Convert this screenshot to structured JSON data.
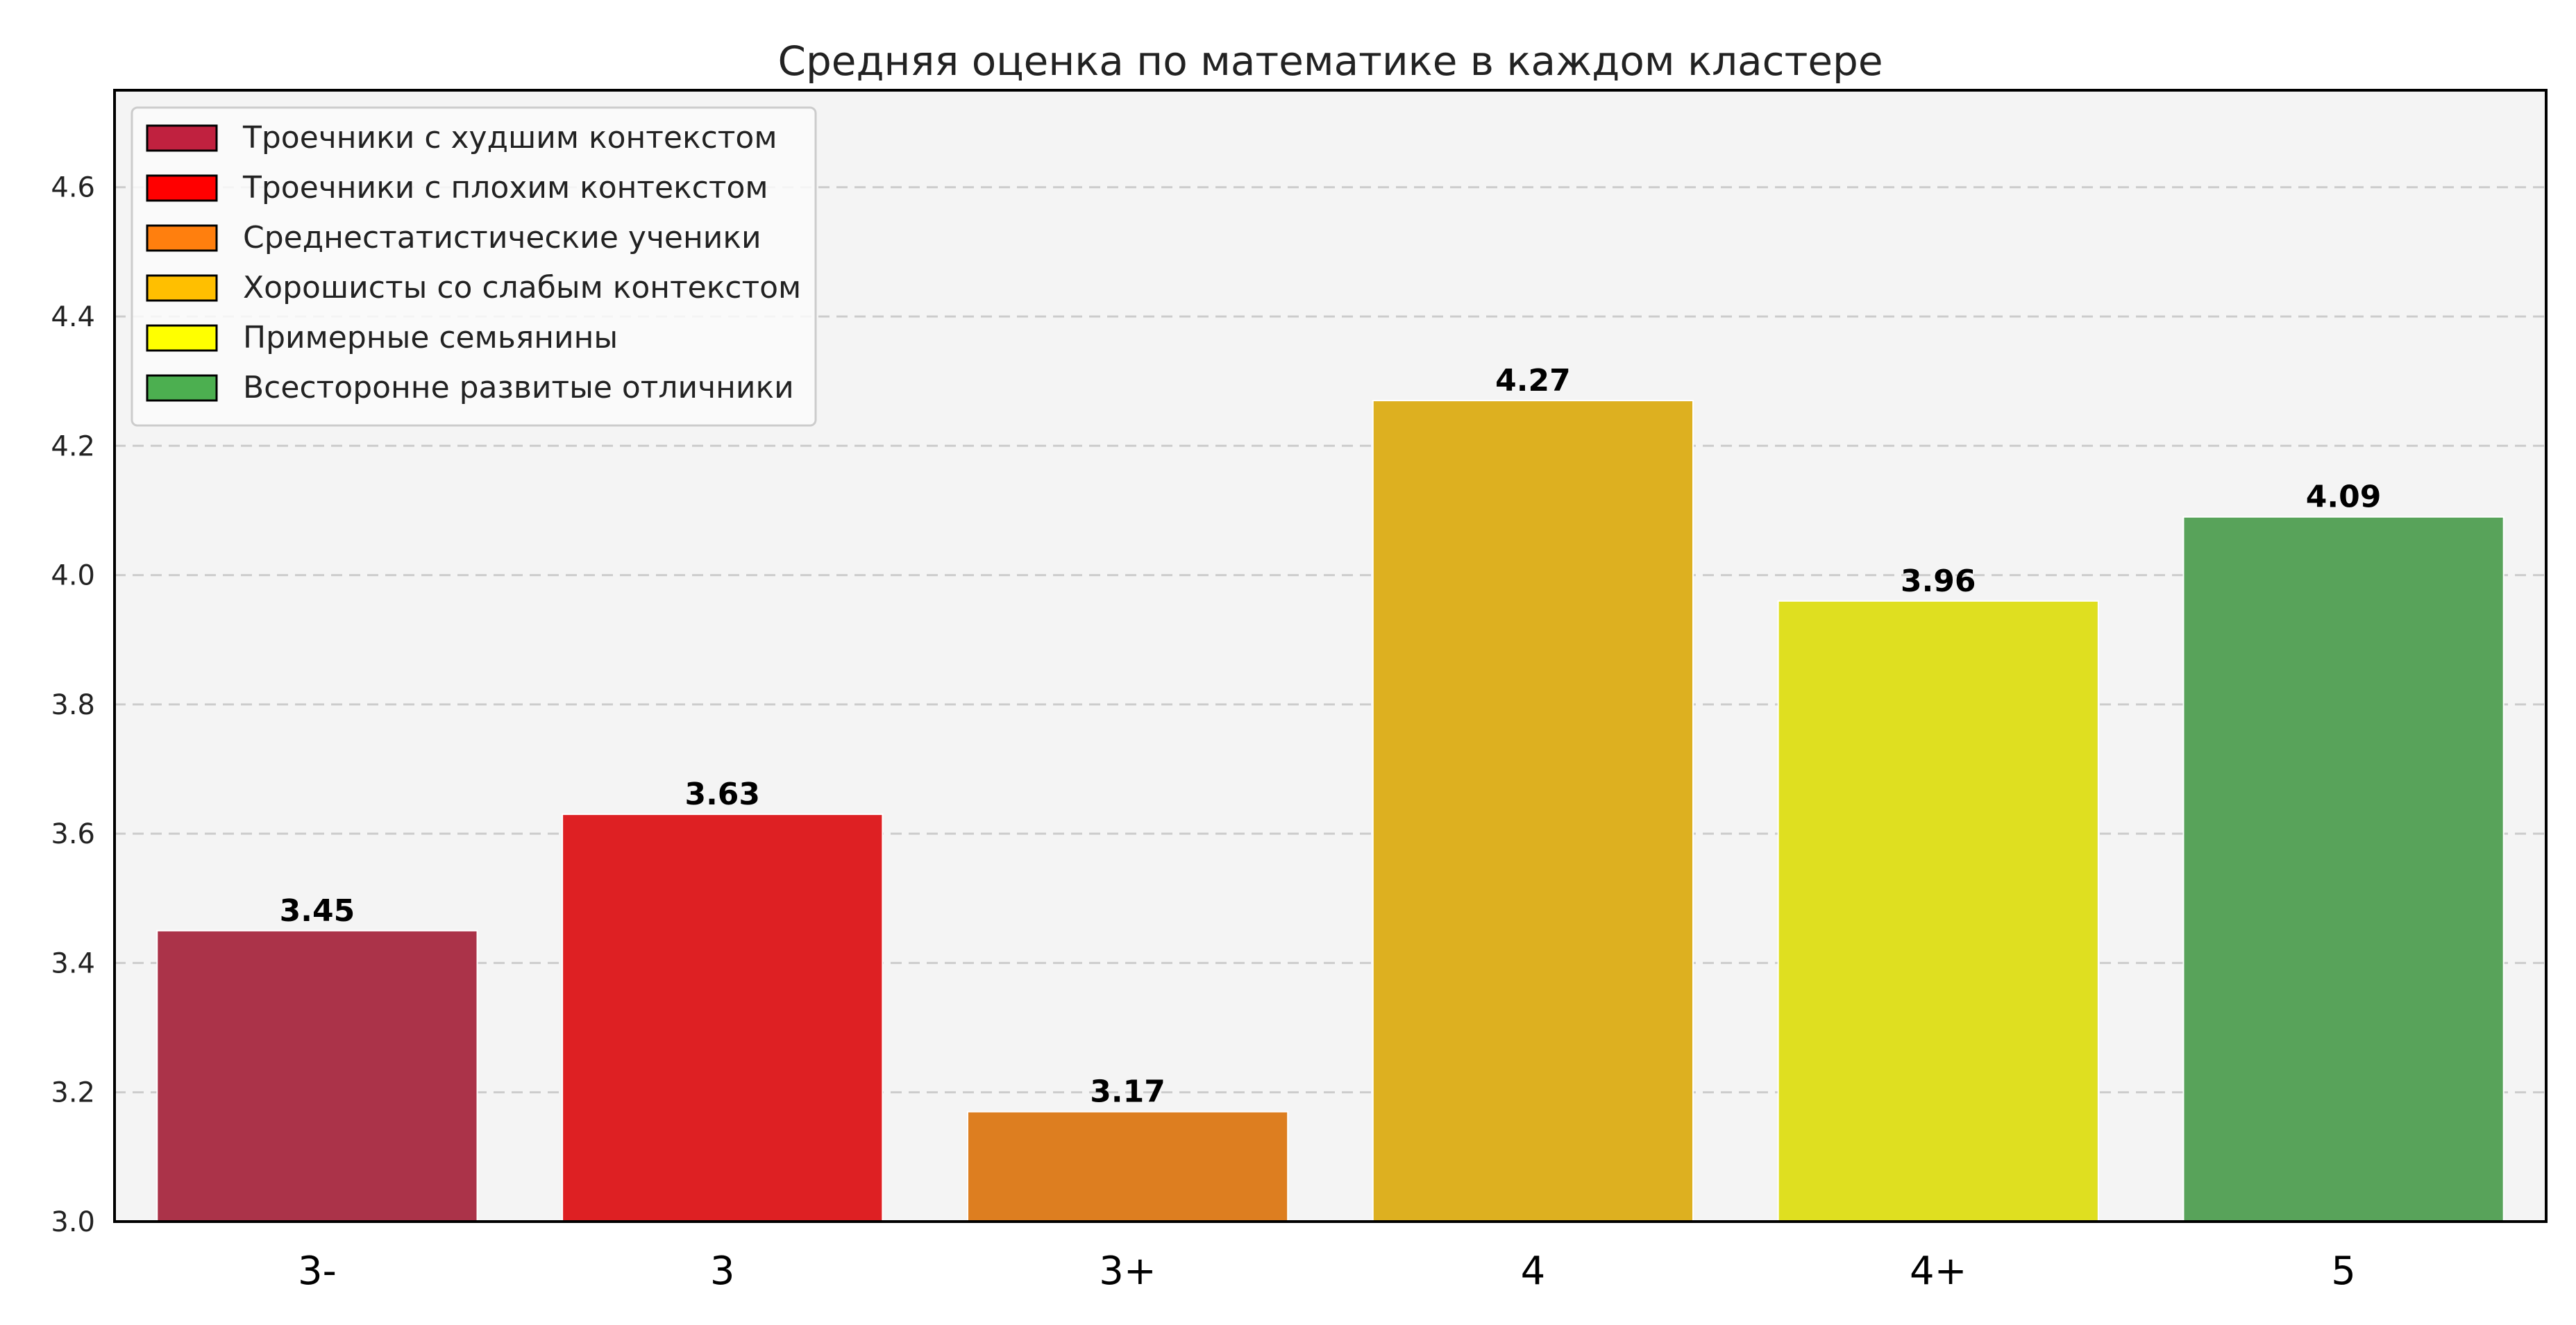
{
  "chart_data": {
    "type": "bar",
    "title": "Средняя оценка по математике в каждом кластере",
    "xlabel": "",
    "ylabel": "",
    "categories": [
      "3-",
      "3",
      "3+",
      "4",
      "4+",
      "5"
    ],
    "values": [
      3.45,
      3.63,
      3.17,
      4.27,
      3.96,
      4.09
    ],
    "value_labels": [
      "3.45",
      "3.63",
      "3.17",
      "4.27",
      "3.96",
      "4.09"
    ],
    "bar_colors": [
      "#ab3349",
      "#de2023",
      "#dd7e20",
      "#ddb020",
      "#dfdf20",
      "#58a35a"
    ],
    "ylim": [
      3.0,
      4.75
    ],
    "yticks": [
      3.0,
      3.2,
      3.4,
      3.6,
      3.8,
      4.0,
      4.2,
      4.4,
      4.6
    ],
    "ytick_labels": [
      "3.0",
      "3.2",
      "3.4",
      "3.6",
      "3.8",
      "4.0",
      "4.2",
      "4.4",
      "4.6"
    ],
    "grid": {
      "axis": "y",
      "style": "dashed",
      "color": "#cccccc"
    },
    "plot_background": "#f4f4f4",
    "legend": {
      "placement": "top-left",
      "entries": [
        {
          "label": "Троечники с худшим контекстом",
          "color": "#c0213f"
        },
        {
          "label": "Троечники с плохим контекстом",
          "color": "#ff0000"
        },
        {
          "label": "Среднестатистические ученики",
          "color": "#ff7f0e"
        },
        {
          "label": "Хорошисты со слабым контекстом",
          "color": "#ffbf00"
        },
        {
          "label": "Примерные семьянины",
          "color": "#ffff00"
        },
        {
          "label": "Всесторонне развитые отличники",
          "color": "#4caf50"
        }
      ]
    }
  }
}
